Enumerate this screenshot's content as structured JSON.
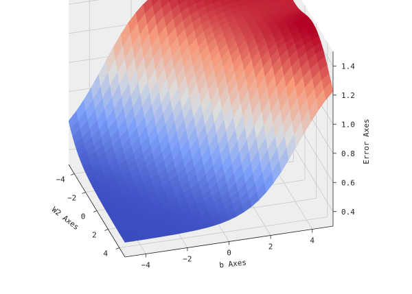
{
  "chart_data": {
    "type": "surface3d",
    "title": "",
    "colormap": "coolwarm",
    "colors": {
      "low": "#3b4cc0",
      "mid": "#dddddd",
      "high": "#b40426",
      "pane": "#eeeeee",
      "grid": "#c8c8c8"
    },
    "x_axis": {
      "label": "W2 Axes",
      "range": [
        -5,
        5
      ],
      "ticks": [
        -4,
        -2,
        0,
        2,
        4
      ]
    },
    "y_axis": {
      "label": "b Axes",
      "range": [
        -5,
        5
      ],
      "ticks": [
        -4,
        -2,
        0,
        2,
        4
      ]
    },
    "z_axis": {
      "label": "Error Axes",
      "range": [
        0.3,
        1.5
      ],
      "ticks": [
        0.4,
        0.6,
        0.8,
        1.0,
        1.2,
        1.4
      ]
    },
    "surface_samples": {
      "description_of_shape": "sigmoidal step rising from ~0.4 (W2≈4, b≈-4 side) to ~1.45 (W2≈-4, b≈4 side)",
      "min_z": 0.4,
      "max_z": 1.45
    },
    "grid": true
  }
}
